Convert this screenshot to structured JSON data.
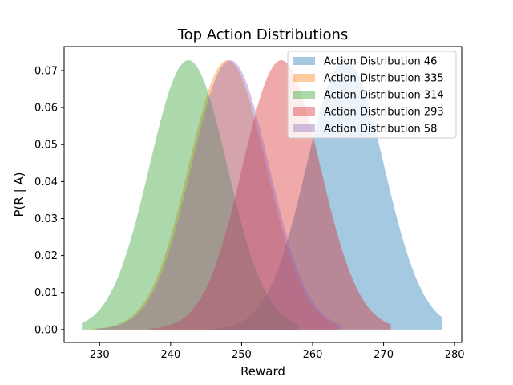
{
  "chart_data": {
    "type": "area",
    "title": "Top Action Distributions",
    "xlabel": "Reward",
    "ylabel": "P(R | A)",
    "xlim": [
      225,
      281
    ],
    "ylim": [
      -0.0035,
      0.0765
    ],
    "xticks": [
      230,
      240,
      250,
      260,
      270,
      280
    ],
    "yticks": [
      0.0,
      0.01,
      0.02,
      0.03,
      0.04,
      0.05,
      0.06,
      0.07
    ],
    "ytick_labels": [
      "0.00",
      "0.01",
      "0.02",
      "0.03",
      "0.04",
      "0.05",
      "0.06",
      "0.07"
    ],
    "x_range": [
      227.5,
      278.2
    ],
    "grid": false,
    "legend_position": "top-right",
    "series": [
      {
        "name": "Action Distribution 46",
        "distribution": "normal",
        "mean": 264.6,
        "std": 5.48,
        "peak": 0.0728,
        "support": [
          245.5,
          278.2
        ],
        "color": "#1f77b4"
      },
      {
        "name": "Action Distribution 335",
        "distribution": "normal",
        "mean": 248.0,
        "std": 5.48,
        "peak": 0.0728,
        "support": [
          229.0,
          263.5
        ],
        "color": "#ff7f0e"
      },
      {
        "name": "Action Distribution 314",
        "distribution": "normal",
        "mean": 242.5,
        "std": 5.48,
        "peak": 0.0728,
        "support": [
          227.5,
          258.0
        ],
        "color": "#2ca02c"
      },
      {
        "name": "Action Distribution 293",
        "distribution": "normal",
        "mean": 255.6,
        "std": 5.48,
        "peak": 0.0728,
        "support": [
          237.0,
          271.0
        ],
        "color": "#d62728"
      },
      {
        "name": "Action Distribution 58",
        "distribution": "normal",
        "mean": 248.4,
        "std": 5.48,
        "peak": 0.0728,
        "support": [
          229.5,
          264.0
        ],
        "color": "#9467bd"
      }
    ]
  }
}
